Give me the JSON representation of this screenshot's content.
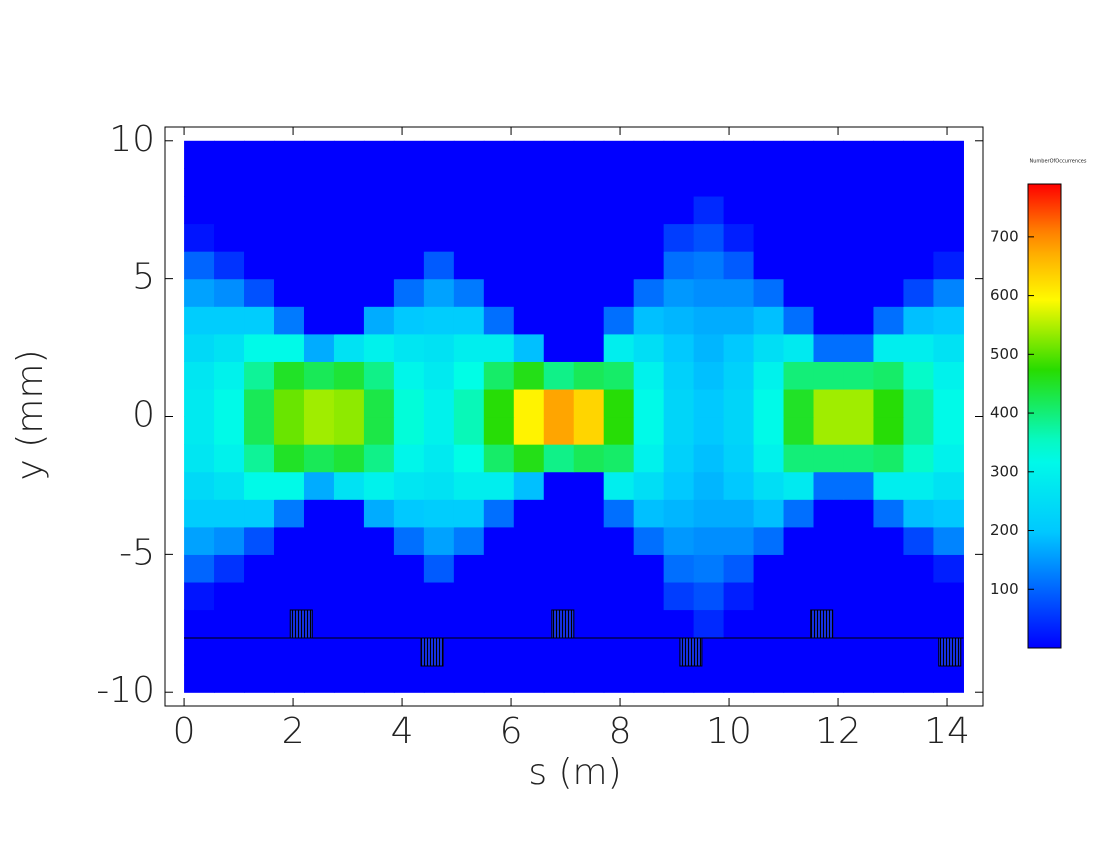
{
  "chart_data": {
    "type": "heatmap",
    "xlabel": "s (m)",
    "ylabel": "y (mm)",
    "colorbar_title": "NumberOfOccurrences",
    "colormap": "jet",
    "xlim": [
      -0.35,
      14.66
    ],
    "ylim": [
      -10.5,
      10.5
    ],
    "xticks": [
      0,
      2,
      4,
      6,
      8,
      10,
      12,
      14
    ],
    "yticks": [
      -10,
      -5,
      0,
      5,
      10
    ],
    "zlim": [
      0,
      790
    ],
    "zticks": [
      100,
      200,
      300,
      400,
      500,
      600,
      700
    ],
    "xbins": [
      0,
      0.55,
      1.1,
      1.65,
      2.2,
      2.75,
      3.3,
      3.85,
      4.4,
      4.95,
      5.5,
      6.05,
      6.6,
      7.15,
      7.7,
      8.25,
      8.8,
      9.35,
      9.9,
      10.45,
      11.0,
      11.55,
      12.1,
      12.65,
      13.2,
      13.75,
      14.3
    ],
    "ybins": [
      -10,
      -9,
      -8,
      -7,
      -6,
      -5,
      -4,
      -3,
      -2,
      -1,
      0,
      1,
      2,
      3,
      4,
      5,
      6,
      7,
      8,
      9,
      10
    ],
    "z": [
      [
        0,
        0,
        0,
        0,
        0,
        0,
        0,
        0,
        0,
        0,
        0,
        0,
        0,
        0,
        0,
        0,
        0,
        0,
        0,
        0,
        0,
        0,
        0,
        0,
        0,
        0
      ],
      [
        0,
        0,
        0,
        0,
        0,
        0,
        0,
        0,
        0,
        0,
        0,
        0,
        0,
        0,
        0,
        0,
        0,
        0,
        0,
        0,
        0,
        0,
        0,
        0,
        0,
        0
      ],
      [
        0,
        0,
        0,
        0,
        0,
        0,
        0,
        0,
        0,
        0,
        0,
        0,
        0,
        0,
        0,
        0,
        0,
        40,
        0,
        0,
        0,
        0,
        0,
        0,
        0,
        0
      ],
      [
        20,
        0,
        0,
        0,
        0,
        0,
        0,
        0,
        0,
        0,
        0,
        0,
        0,
        0,
        0,
        0,
        60,
        80,
        30,
        0,
        0,
        0,
        0,
        0,
        0,
        0
      ],
      [
        100,
        50,
        0,
        0,
        0,
        0,
        0,
        0,
        90,
        0,
        0,
        0,
        0,
        0,
        0,
        0,
        110,
        120,
        90,
        0,
        0,
        0,
        0,
        0,
        0,
        30
      ],
      [
        160,
        140,
        80,
        0,
        0,
        0,
        0,
        110,
        160,
        120,
        0,
        0,
        0,
        0,
        0,
        110,
        150,
        140,
        140,
        110,
        0,
        0,
        0,
        0,
        70,
        130
      ],
      [
        210,
        210,
        210,
        120,
        0,
        0,
        170,
        200,
        210,
        210,
        110,
        0,
        0,
        0,
        110,
        190,
        180,
        170,
        170,
        190,
        110,
        0,
        0,
        110,
        190,
        200
      ],
      [
        240,
        260,
        320,
        320,
        170,
        260,
        300,
        270,
        260,
        290,
        290,
        190,
        0,
        0,
        290,
        250,
        200,
        180,
        200,
        250,
        280,
        110,
        110,
        290,
        290,
        260
      ],
      [
        270,
        300,
        380,
        450,
        420,
        440,
        390,
        310,
        280,
        330,
        410,
        460,
        390,
        420,
        410,
        300,
        220,
        190,
        220,
        300,
        400,
        400,
        400,
        410,
        350,
        300
      ],
      [
        280,
        320,
        420,
        510,
        540,
        530,
        430,
        340,
        300,
        360,
        470,
        600,
        680,
        630,
        470,
        320,
        230,
        200,
        230,
        320,
        450,
        540,
        540,
        470,
        380,
        320
      ],
      [
        280,
        320,
        420,
        510,
        540,
        530,
        430,
        340,
        300,
        360,
        470,
        600,
        680,
        630,
        470,
        320,
        230,
        200,
        230,
        320,
        450,
        540,
        540,
        470,
        380,
        320
      ],
      [
        270,
        300,
        380,
        450,
        420,
        440,
        390,
        310,
        280,
        330,
        410,
        460,
        390,
        420,
        410,
        300,
        220,
        190,
        220,
        300,
        400,
        400,
        400,
        410,
        350,
        300
      ],
      [
        240,
        260,
        320,
        320,
        170,
        260,
        300,
        270,
        260,
        290,
        290,
        190,
        0,
        0,
        290,
        250,
        200,
        180,
        200,
        250,
        280,
        110,
        110,
        290,
        290,
        260
      ],
      [
        210,
        210,
        210,
        120,
        0,
        0,
        170,
        200,
        210,
        210,
        110,
        0,
        0,
        0,
        110,
        190,
        180,
        170,
        170,
        190,
        110,
        0,
        0,
        110,
        190,
        200
      ],
      [
        160,
        140,
        80,
        0,
        0,
        0,
        0,
        110,
        160,
        120,
        0,
        0,
        0,
        0,
        0,
        110,
        150,
        140,
        140,
        110,
        0,
        0,
        0,
        0,
        70,
        130
      ],
      [
        100,
        50,
        0,
        0,
        0,
        0,
        0,
        0,
        90,
        0,
        0,
        0,
        0,
        0,
        0,
        0,
        110,
        120,
        90,
        0,
        0,
        0,
        0,
        0,
        0,
        30
      ],
      [
        20,
        0,
        0,
        0,
        0,
        0,
        0,
        0,
        0,
        0,
        0,
        0,
        0,
        0,
        0,
        0,
        60,
        80,
        30,
        0,
        0,
        0,
        0,
        0,
        0,
        0
      ],
      [
        0,
        0,
        0,
        0,
        0,
        0,
        0,
        0,
        0,
        0,
        0,
        0,
        0,
        0,
        0,
        0,
        0,
        40,
        0,
        0,
        0,
        0,
        0,
        0,
        0,
        0
      ],
      [
        0,
        0,
        0,
        0,
        0,
        0,
        0,
        0,
        0,
        0,
        0,
        0,
        0,
        0,
        0,
        0,
        0,
        0,
        0,
        0,
        0,
        0,
        0,
        0,
        0,
        0
      ],
      [
        0,
        0,
        0,
        0,
        0,
        0,
        0,
        0,
        0,
        0,
        0,
        0,
        0,
        0,
        0,
        0,
        0,
        0,
        0,
        0,
        0,
        0,
        0,
        0,
        0,
        0
      ]
    ],
    "lattice_s": [
      2.15,
      4.55,
      6.95,
      9.3,
      11.7,
      14.05
    ]
  }
}
